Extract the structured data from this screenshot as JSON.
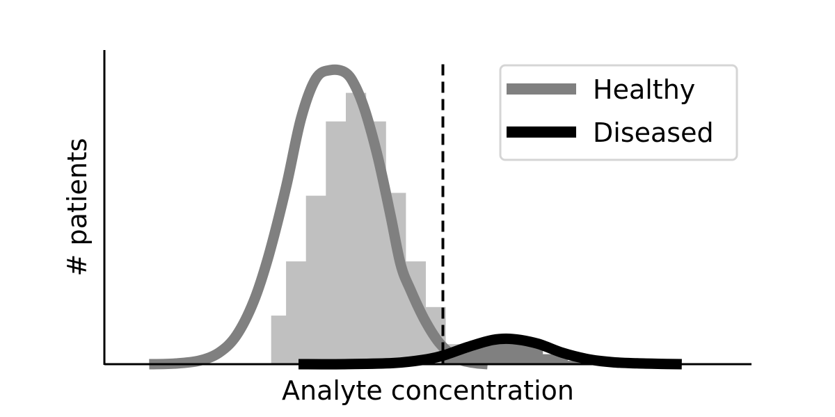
{
  "chart_data": {
    "type": "area",
    "title": "",
    "xlabel": "Analyte concentration",
    "ylabel": "# patients",
    "x_ticks_shown": false,
    "y_ticks_shown": false,
    "grid": false,
    "xlim": [
      0,
      13
    ],
    "ylim": [
      0,
      1.1
    ],
    "legend": {
      "placement": "top-right",
      "entries": [
        "Healthy",
        "Diseased"
      ]
    },
    "threshold": {
      "style": "dashed",
      "color": "#000000",
      "x": 6.8,
      "y_top": 1.05
    },
    "series": [
      {
        "name": "Healthy",
        "line_color": "#808080",
        "x": [
          0.9,
          1.4,
          1.9,
          2.3,
          2.65,
          3.0,
          3.3,
          3.65,
          3.95,
          4.25,
          4.55,
          4.85,
          5.05,
          5.25,
          5.5,
          5.75,
          5.95,
          6.15,
          6.45,
          6.75,
          7.1,
          7.4,
          7.7
        ],
        "values": [
          0.0,
          0.002,
          0.012,
          0.04,
          0.1,
          0.22,
          0.38,
          0.62,
          0.86,
          1.0,
          1.03,
          1.02,
          0.97,
          0.88,
          0.72,
          0.52,
          0.35,
          0.26,
          0.15,
          0.07,
          0.02,
          0.005,
          0.0
        ]
      },
      {
        "name": "Diseased",
        "line_color": "#000000",
        "x": [
          3.9,
          4.8,
          5.8,
          6.4,
          6.8,
          7.3,
          7.8,
          8.2,
          8.7,
          9.2,
          9.7,
          10.2,
          10.7,
          11.2,
          11.6
        ],
        "values": [
          0.0,
          0.0,
          0.004,
          0.015,
          0.03,
          0.06,
          0.085,
          0.088,
          0.072,
          0.04,
          0.018,
          0.007,
          0.003,
          0.001,
          0.0
        ]
      }
    ],
    "histograms": [
      {
        "series": "Healthy",
        "fill": "#c0c0c0",
        "bins": [
          {
            "x0": 3.35,
            "x1": 3.65,
            "value": 0.17
          },
          {
            "x0": 3.65,
            "x1": 4.05,
            "value": 0.36
          },
          {
            "x0": 4.05,
            "x1": 4.45,
            "value": 0.59
          },
          {
            "x0": 4.45,
            "x1": 4.85,
            "value": 0.85
          },
          {
            "x0": 4.85,
            "x1": 5.25,
            "value": 0.95
          },
          {
            "x0": 5.25,
            "x1": 5.65,
            "value": 0.85
          },
          {
            "x0": 5.65,
            "x1": 6.05,
            "value": 0.6
          },
          {
            "x0": 6.05,
            "x1": 6.45,
            "value": 0.36
          },
          {
            "x0": 6.45,
            "x1": 6.85,
            "value": 0.2
          },
          {
            "x0": 6.85,
            "x1": 7.35,
            "value": 0.07
          },
          {
            "x0": 7.35,
            "x1": 7.75,
            "value": 0.02
          }
        ]
      },
      {
        "series": "Diseased",
        "fill": "#808080",
        "bins": [
          {
            "x0": 6.8,
            "x1": 7.3,
            "value": 0.04
          },
          {
            "x0": 7.3,
            "x1": 7.8,
            "value": 0.07
          },
          {
            "x0": 7.8,
            "x1": 8.3,
            "value": 0.085
          },
          {
            "x0": 8.3,
            "x1": 8.8,
            "value": 0.07
          },
          {
            "x0": 8.8,
            "x1": 9.3,
            "value": 0.035
          },
          {
            "x0": 9.3,
            "x1": 9.8,
            "value": 0.012
          }
        ]
      }
    ]
  }
}
